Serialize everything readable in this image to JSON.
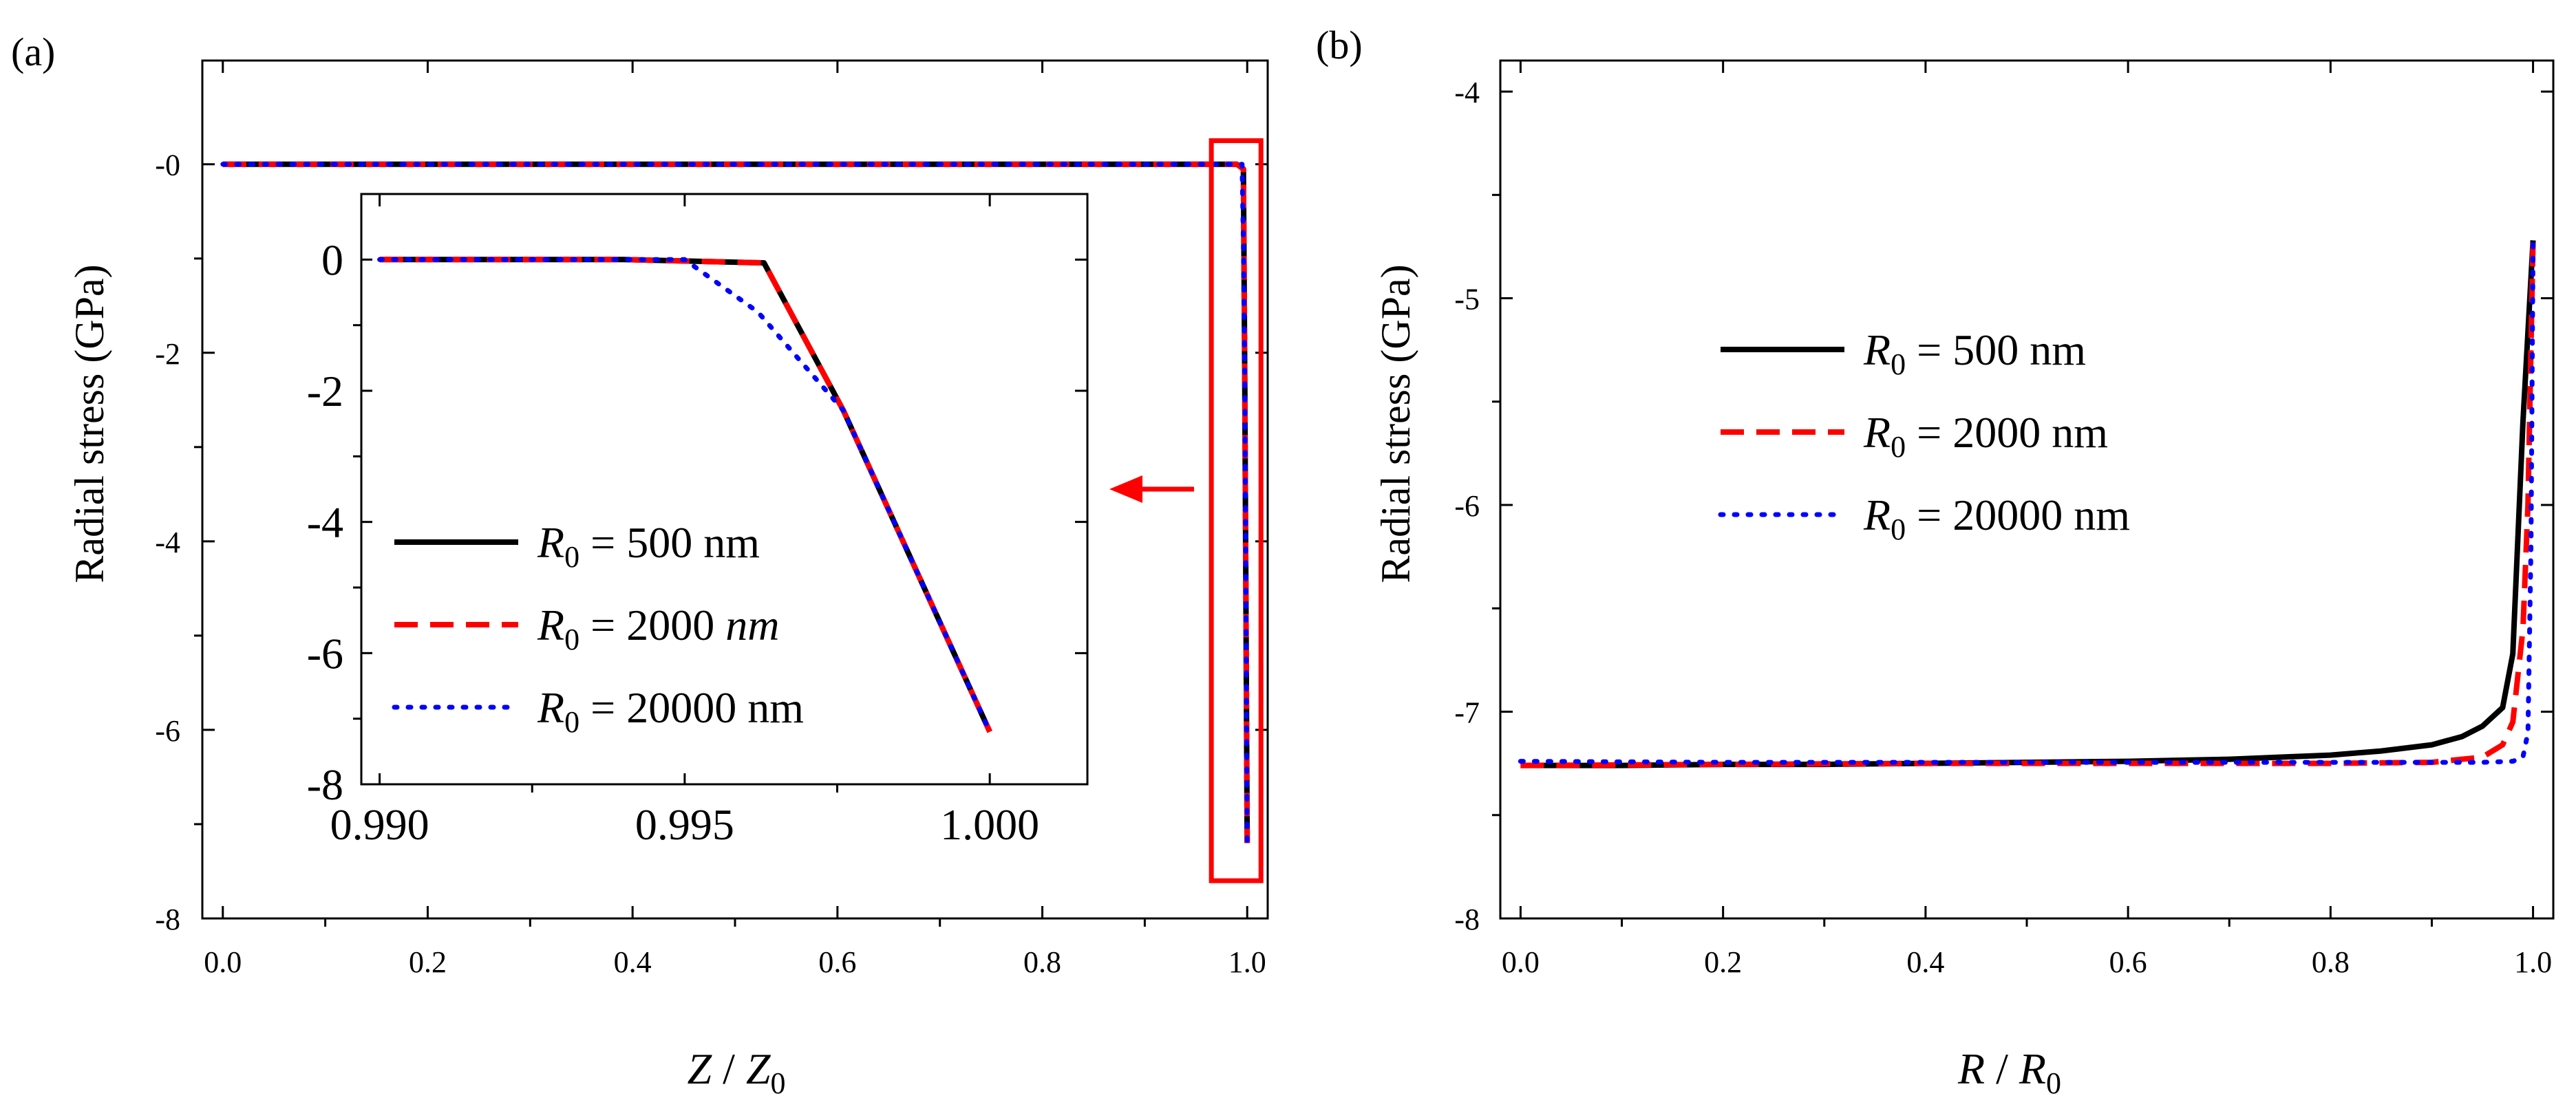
{
  "chart_data": [
    {
      "id": "a",
      "type": "line",
      "panel_label": "(a)",
      "xlabel_parts": [
        "Z",
        " / ",
        "Z",
        "0"
      ],
      "ylabel": "Radial stress (GPa)",
      "xlim": [
        -0.02,
        1.02
      ],
      "ylim": [
        -8,
        1.1
      ],
      "xticks": [
        0.0,
        0.2,
        0.4,
        0.6,
        0.8,
        1.0
      ],
      "xtick_labels": [
        "0.0",
        "0.2",
        "0.4",
        "0.6",
        "0.8",
        "1.0"
      ],
      "yticks": [
        -8,
        -6,
        -4,
        -2,
        0
      ],
      "ytick_labels": [
        "-8",
        "-6",
        "-4",
        "-2",
        "-0"
      ],
      "series": [
        {
          "name": "R0 = 500 nm",
          "color": "#000000",
          "dash": "solid",
          "x": [
            0.0,
            0.2,
            0.4,
            0.6,
            0.8,
            0.99,
            0.9963,
            0.9976,
            1.0
          ],
          "y": [
            0.0,
            0.0,
            0.0,
            0.0,
            0.0,
            0.0,
            -0.05,
            -2.3,
            -7.2
          ]
        },
        {
          "name": "R0 = 2000 nm",
          "color": "#ff0000",
          "dash": "dash",
          "x": [
            0.0,
            0.2,
            0.4,
            0.6,
            0.8,
            0.99,
            0.9963,
            0.9976,
            1.0
          ],
          "y": [
            0.0,
            0.0,
            0.0,
            0.0,
            0.0,
            0.0,
            -0.05,
            -2.3,
            -7.2
          ]
        },
        {
          "name": "R0 = 20000 nm",
          "color": "#0000ff",
          "dash": "dot",
          "x": [
            0.0,
            0.2,
            0.4,
            0.6,
            0.8,
            0.99,
            0.995,
            0.9962,
            0.9976,
            1.0
          ],
          "y": [
            0.0,
            0.0,
            0.0,
            0.0,
            0.0,
            0.0,
            0.0,
            -0.8,
            -2.3,
            -7.2
          ]
        }
      ],
      "highlight_box": {
        "x_range": [
          0.965,
          1.0
        ],
        "y_range": [
          -7.6,
          0.25
        ],
        "color": "#ff0000"
      },
      "annotation": "red arrow pointing from highlighted region to inset"
    },
    {
      "id": "a-inset",
      "type": "line",
      "xlim": [
        0.9897,
        1.0016
      ],
      "ylim": [
        -8,
        1
      ],
      "xticks": [
        0.99,
        0.995,
        1.0
      ],
      "xtick_labels": [
        "0.990",
        "0.995",
        "1.000"
      ],
      "yticks": [
        -8,
        -6,
        -4,
        -2,
        0
      ],
      "ytick_labels": [
        "-8",
        "-6",
        "-4",
        "-2",
        "0"
      ],
      "legend": [
        {
          "prefix": "R",
          "sub": "0",
          "rest": " = 500 nm",
          "italic_unit": false
        },
        {
          "prefix": "R",
          "sub": "0",
          "rest": " = 2000 ",
          "unit": "nm",
          "italic_unit": true
        },
        {
          "prefix": "R",
          "sub": "0",
          "rest": " = 20000 nm",
          "italic_unit": false
        }
      ],
      "series": [
        {
          "name": "R0 = 500 nm",
          "color": "#000000",
          "dash": "solid",
          "x": [
            0.99,
            0.994,
            0.9963,
            0.9976,
            1.0
          ],
          "y": [
            0.0,
            0.0,
            -0.05,
            -2.3,
            -7.2
          ]
        },
        {
          "name": "R0 = 2000 nm",
          "color": "#ff0000",
          "dash": "dash",
          "x": [
            0.99,
            0.994,
            0.9963,
            0.9976,
            1.0
          ],
          "y": [
            0.0,
            0.0,
            -0.05,
            -2.3,
            -7.2
          ]
        },
        {
          "name": "R0 = 20000 nm",
          "color": "#0000ff",
          "dash": "dot",
          "x": [
            0.99,
            0.995,
            0.9962,
            0.9976,
            1.0
          ],
          "y": [
            0.0,
            0.0,
            -0.8,
            -2.3,
            -7.2
          ]
        }
      ]
    },
    {
      "id": "b",
      "type": "line",
      "panel_label": "(b)",
      "xlabel_parts": [
        "R",
        " / ",
        "R",
        "0"
      ],
      "ylabel": "Radial stress (GPa)",
      "xlim": [
        -0.02,
        1.02
      ],
      "ylim": [
        -8,
        -3.85
      ],
      "xticks": [
        0.0,
        0.2,
        0.4,
        0.6,
        0.8,
        1.0
      ],
      "xtick_labels": [
        "0.0",
        "0.2",
        "0.4",
        "0.6",
        "0.8",
        "1.0"
      ],
      "yticks": [
        -8,
        -7,
        -6,
        -5,
        -4
      ],
      "ytick_labels": [
        "-8",
        "-7",
        "-6",
        "-5",
        "-4"
      ],
      "legend": [
        {
          "prefix": "R",
          "sub": "0",
          "rest": " = 500 nm"
        },
        {
          "prefix": "R",
          "sub": "0",
          "rest": " = 2000 nm"
        },
        {
          "prefix": "R",
          "sub": "0",
          "rest": " = 20000 nm"
        }
      ],
      "series": [
        {
          "name": "R0 = 500 nm",
          "color": "#000000",
          "dash": "solid",
          "x": [
            0.0,
            0.1,
            0.2,
            0.3,
            0.4,
            0.5,
            0.6,
            0.7,
            0.8,
            0.85,
            0.9,
            0.93,
            0.95,
            0.97,
            0.98,
            0.99,
            1.0
          ],
          "y": [
            -7.26,
            -7.26,
            -7.255,
            -7.255,
            -7.25,
            -7.245,
            -7.24,
            -7.23,
            -7.21,
            -7.19,
            -7.16,
            -7.12,
            -7.07,
            -6.98,
            -6.72,
            -5.6,
            -4.72
          ]
        },
        {
          "name": "R0 = 2000 nm",
          "color": "#ff0000",
          "dash": "dash",
          "x": [
            0.0,
            0.2,
            0.4,
            0.6,
            0.8,
            0.9,
            0.95,
            0.97,
            0.98,
            0.99,
            0.995,
            1.0
          ],
          "y": [
            -7.26,
            -7.255,
            -7.25,
            -7.25,
            -7.25,
            -7.245,
            -7.22,
            -7.16,
            -7.05,
            -6.6,
            -6.0,
            -4.72
          ]
        },
        {
          "name": "R0 = 20000 nm",
          "color": "#0000ff",
          "dash": "dot",
          "x": [
            0.0,
            0.2,
            0.4,
            0.6,
            0.8,
            0.9,
            0.95,
            0.98,
            0.99,
            0.995,
            0.998,
            1.0
          ],
          "y": [
            -7.24,
            -7.245,
            -7.245,
            -7.245,
            -7.245,
            -7.245,
            -7.245,
            -7.24,
            -7.22,
            -7.1,
            -6.2,
            -4.72
          ]
        }
      ]
    }
  ]
}
